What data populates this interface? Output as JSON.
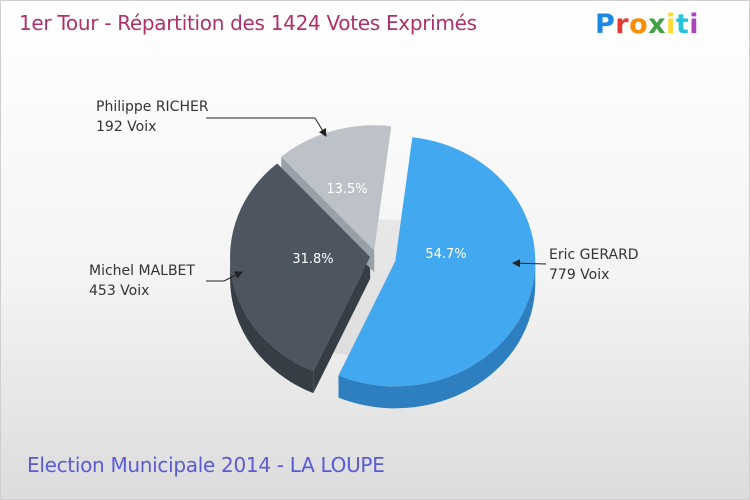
{
  "title": "1er Tour - Répartition des 1424 Votes Exprimés",
  "footer": "Election Municipale 2014 - LA LOUPE",
  "logo": {
    "text": "Proxiti",
    "colors": [
      "#1e88e5",
      "#e53935",
      "#fb8c00",
      "#43a047",
      "#fdd835",
      "#26c6da",
      "#ab47bc"
    ]
  },
  "chart_data": {
    "type": "pie",
    "title": "1er Tour - Répartition des 1424 Votes Exprimés",
    "total": 1424,
    "slices": [
      {
        "name": "Eric GERARD",
        "votes": 779,
        "votes_label": "779 Voix",
        "percent": 54.7,
        "percent_label": "54.7%",
        "color": "#42a8f0",
        "side_color": "#2e7fc0"
      },
      {
        "name": "Michel MALBET",
        "votes": 453,
        "votes_label": "453 Voix",
        "percent": 31.8,
        "percent_label": "31.8%",
        "color": "#4c5560",
        "side_color": "#363d45"
      },
      {
        "name": "Philippe RICHER",
        "votes": 192,
        "votes_label": "192 Voix",
        "percent": 13.5,
        "percent_label": "13.5%",
        "color": "#bcc2c8",
        "side_color": "#98a0a8"
      }
    ]
  }
}
